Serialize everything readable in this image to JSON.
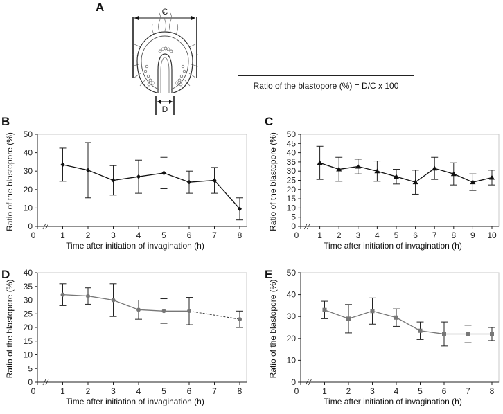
{
  "panel_labels": {
    "a": "A",
    "b": "B",
    "c": "C",
    "d": "D",
    "e": "E"
  },
  "diagram": {
    "label_c": "C",
    "label_d": "D"
  },
  "formula": "Ratio of the blastopore (%) =  D/C x 100",
  "chart_data": [
    {
      "panel": "B",
      "type": "line",
      "xlabel": "Time after initiation of invagination (h)",
      "ylabel": "Ratio of the blastopore (%)",
      "ylim": [
        0,
        50
      ],
      "yticks": [
        0,
        10,
        20,
        30,
        40,
        50
      ],
      "xlim": [
        0,
        8
      ],
      "xticks": [
        0,
        1,
        2,
        3,
        4,
        5,
        6,
        7,
        8
      ],
      "x": [
        1,
        2,
        3,
        4,
        5,
        6,
        7,
        8
      ],
      "series": [
        {
          "marker": "diamond",
          "color": "#111111",
          "values": [
            33.5,
            30.5,
            25,
            27,
            29,
            24,
            25,
            9.5
          ],
          "errors": [
            9,
            15,
            8,
            9,
            8.5,
            6,
            7,
            6
          ]
        }
      ]
    },
    {
      "panel": "C",
      "type": "line",
      "xlabel": "Time after initiation of invagination (h)",
      "ylabel": "Ratio of the blastopore (%)",
      "ylim": [
        0,
        50
      ],
      "yticks": [
        0,
        5,
        10,
        15,
        20,
        25,
        30,
        35,
        40,
        45,
        50
      ],
      "xlim": [
        0,
        10
      ],
      "xticks": [
        0,
        1,
        2,
        3,
        4,
        5,
        6,
        7,
        8,
        9,
        10
      ],
      "x": [
        1,
        2,
        3,
        4,
        5,
        6,
        7,
        8,
        9,
        10
      ],
      "series": [
        {
          "marker": "triangle",
          "color": "#111111",
          "values": [
            34.5,
            31,
            32.5,
            30,
            27,
            24,
            31.5,
            28.5,
            24,
            26.5
          ],
          "errors": [
            9,
            6.5,
            4,
            5.5,
            4,
            6.5,
            6,
            6,
            4.5,
            4
          ]
        }
      ]
    },
    {
      "panel": "D",
      "type": "line",
      "xlabel": "Time after initiation of invagination (h)",
      "ylabel": "Ratio of the blastopore (%)",
      "ylim": [
        0,
        40
      ],
      "yticks": [
        0,
        5,
        10,
        15,
        20,
        25,
        30,
        35,
        40
      ],
      "xlim": [
        0,
        8
      ],
      "xticks": [
        0,
        1,
        2,
        3,
        4,
        5,
        6,
        7,
        8
      ],
      "x": [
        1,
        2,
        3,
        4,
        5,
        6,
        8
      ],
      "series": [
        {
          "marker": "circle",
          "color": "#777777",
          "values": [
            32,
            31.5,
            30,
            26.5,
            26,
            26,
            23
          ],
          "errors": [
            4,
            3,
            6,
            3.5,
            4.5,
            5,
            3
          ],
          "dashed_from_index": 5
        }
      ]
    },
    {
      "panel": "E",
      "type": "line",
      "xlabel": "Time after initiation of invagination (h)",
      "ylabel": "Ratio of the blastopore (%)",
      "ylim": [
        0,
        50
      ],
      "yticks": [
        0,
        10,
        20,
        30,
        40,
        50
      ],
      "xlim": [
        0,
        8
      ],
      "xticks": [
        0,
        1,
        2,
        3,
        4,
        5,
        6,
        7,
        8
      ],
      "x": [
        1,
        2,
        3,
        4,
        5,
        6,
        7,
        8
      ],
      "series": [
        {
          "marker": "square",
          "color": "#777777",
          "values": [
            33,
            29,
            32.5,
            29.5,
            23.5,
            22,
            22,
            22
          ],
          "errors": [
            4,
            6.5,
            6,
            4,
            4,
            5.5,
            4,
            3
          ]
        }
      ]
    }
  ]
}
